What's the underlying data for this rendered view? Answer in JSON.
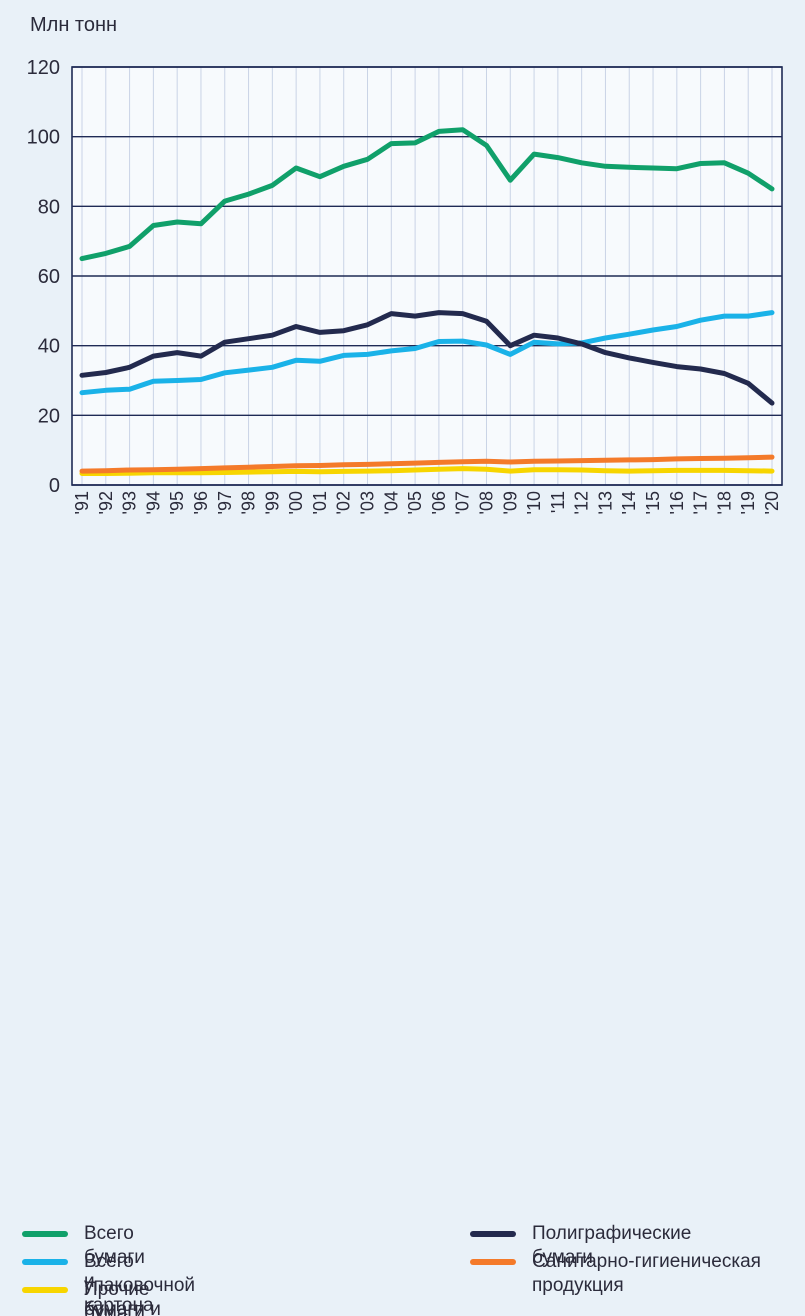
{
  "chart_data": {
    "type": "line",
    "ylabel": "Млн тонн",
    "ylim": [
      0,
      120
    ],
    "yticks": [
      0,
      20,
      40,
      60,
      80,
      100,
      120
    ],
    "grid": "horizontal",
    "legend_position": "bottom",
    "x": [
      "'91",
      "'92",
      "'93",
      "'94",
      "'95",
      "'96",
      "'97",
      "'98",
      "'99",
      "'00",
      "'01",
      "'02",
      "'03",
      "'04",
      "'05",
      "'06",
      "'07",
      "'08",
      "'09",
      "'10",
      "'11",
      "'12",
      "'13",
      "'14",
      "'15",
      "'16",
      "'17",
      "'18",
      "'19",
      "'20"
    ],
    "series": [
      {
        "name": "Всего бумаги и картона",
        "color": "#10a06a",
        "values": [
          65,
          66.5,
          68.5,
          74.5,
          75.5,
          75,
          81.5,
          83.5,
          86,
          91,
          88.5,
          91.5,
          93.5,
          98,
          98.2,
          101.5,
          102,
          97.5,
          87.5,
          95,
          94,
          92.5,
          91.5,
          91.2,
          91,
          90.8,
          92.3,
          92.5,
          89.5,
          85
        ]
      },
      {
        "name": "Полиграфические бумаги",
        "color": "#232a4e",
        "values": [
          31.5,
          32.3,
          33.8,
          37,
          38,
          37,
          41,
          42,
          43,
          45.5,
          43.8,
          44.3,
          46,
          49.2,
          48.5,
          49.5,
          49.2,
          47,
          40,
          43,
          42.2,
          40.5,
          38,
          36.5,
          35.2,
          34,
          33.3,
          32,
          29.2,
          23.5
        ]
      },
      {
        "name": "Всего упаковочной бумаги и картона",
        "color": "#1ab2e8",
        "values": [
          26.5,
          27.2,
          27.5,
          29.8,
          30,
          30.3,
          32.2,
          33,
          33.8,
          35.8,
          35.5,
          37.2,
          37.5,
          38.5,
          39.2,
          41.2,
          41.3,
          40.2,
          37.5,
          41,
          40.5,
          40.8,
          42.2,
          43.3,
          44.5,
          45.5,
          47.3,
          48.5,
          48.5,
          49.5
        ]
      },
      {
        "name": "Санитарно-гигиеническая продукция",
        "color": "#f47a2a",
        "values": [
          4,
          4.1,
          4.3,
          4.4,
          4.5,
          4.7,
          4.9,
          5.1,
          5.3,
          5.5,
          5.6,
          5.8,
          5.9,
          6.1,
          6.3,
          6.5,
          6.7,
          6.8,
          6.6,
          6.8,
          6.9,
          7,
          7.1,
          7.2,
          7.3,
          7.5,
          7.6,
          7.7,
          7.8,
          8
        ]
      },
      {
        "name": "Прочие бумаги и картоны",
        "color": "#f7d500",
        "values": [
          3.3,
          3.3,
          3.4,
          3.5,
          3.5,
          3.5,
          3.6,
          3.7,
          3.8,
          3.9,
          3.8,
          3.9,
          4,
          4.1,
          4.3,
          4.5,
          4.7,
          4.5,
          4,
          4.4,
          4.4,
          4.3,
          4.1,
          4,
          4.1,
          4.2,
          4.2,
          4.2,
          4.1,
          4
        ]
      }
    ]
  }
}
